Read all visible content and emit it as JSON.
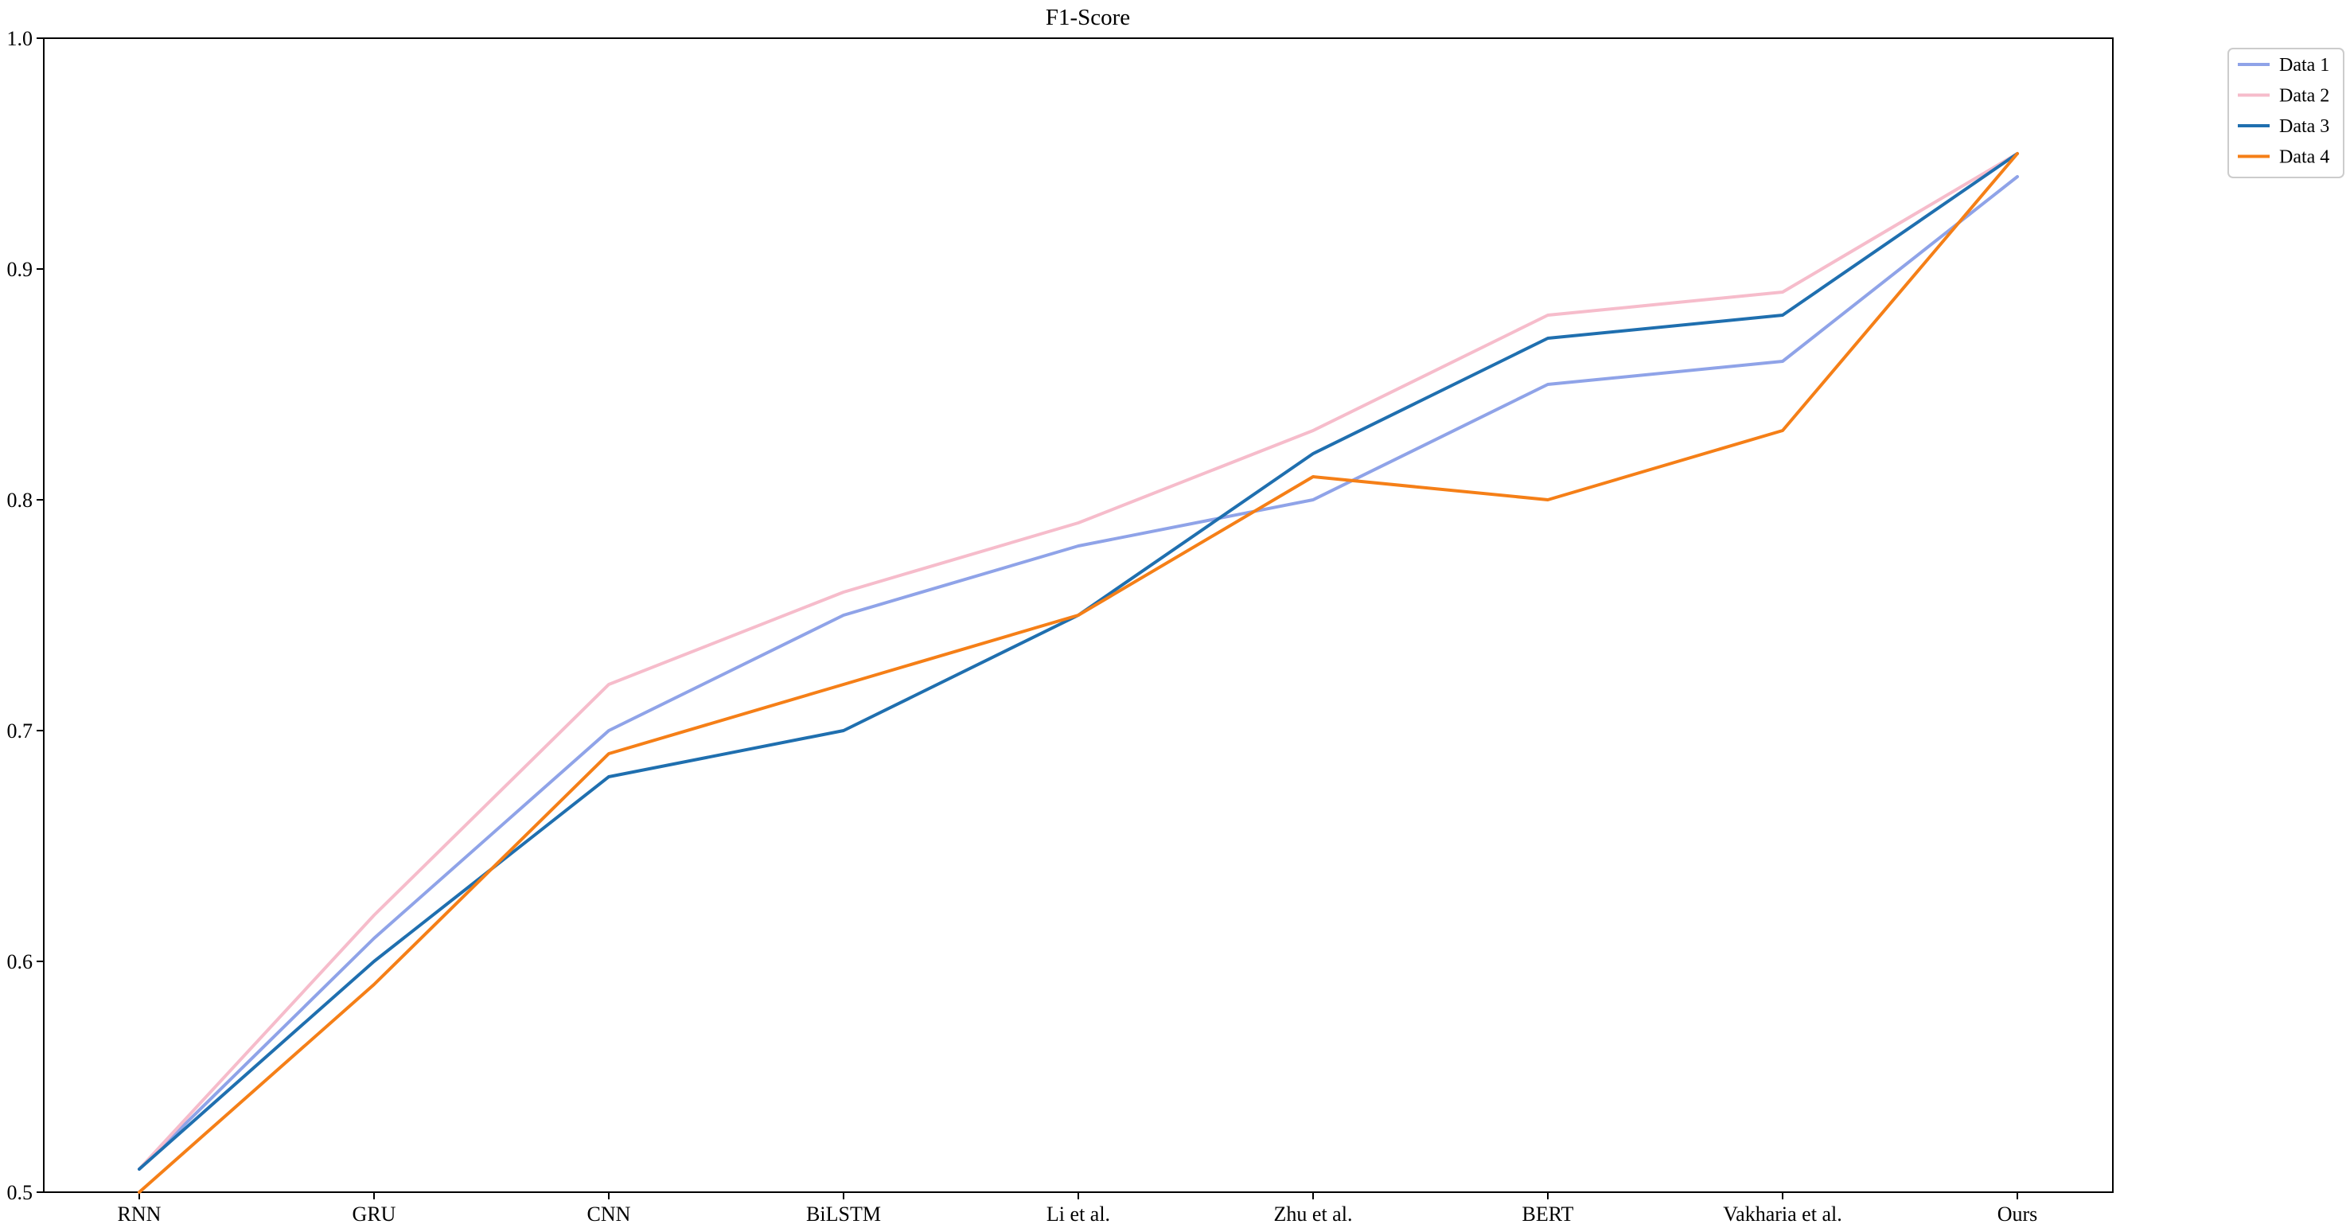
{
  "chart_data": {
    "type": "line",
    "title": "F1-Score",
    "xlabel": "",
    "ylabel": "",
    "categories": [
      "RNN",
      "GRU",
      "CNN",
      "BiLSTM",
      "Li et al.",
      "Zhu et al.",
      "BERT",
      "Vakharia et al.",
      "Ours"
    ],
    "ylim": [
      0.5,
      1.0
    ],
    "yticks": [
      "0.5",
      "0.6",
      "0.7",
      "0.8",
      "0.9",
      "1.0"
    ],
    "grid": false,
    "legend_position": "outside-top-right",
    "series": [
      {
        "name": "Data 1",
        "color": "#8fa3e8",
        "values": [
          0.51,
          0.61,
          0.7,
          0.75,
          0.78,
          0.8,
          0.85,
          0.86,
          0.94
        ]
      },
      {
        "name": "Data 2",
        "color": "#f6bccb",
        "values": [
          0.51,
          0.62,
          0.72,
          0.76,
          0.79,
          0.83,
          0.88,
          0.89,
          0.95
        ]
      },
      {
        "name": "Data 3",
        "color": "#1f6faf",
        "values": [
          0.51,
          0.6,
          0.68,
          0.7,
          0.75,
          0.82,
          0.87,
          0.88,
          0.95
        ]
      },
      {
        "name": "Data 4",
        "color": "#f57f17",
        "values": [
          0.5,
          0.59,
          0.69,
          0.72,
          0.75,
          0.81,
          0.8,
          0.83,
          0.95
        ]
      }
    ]
  }
}
